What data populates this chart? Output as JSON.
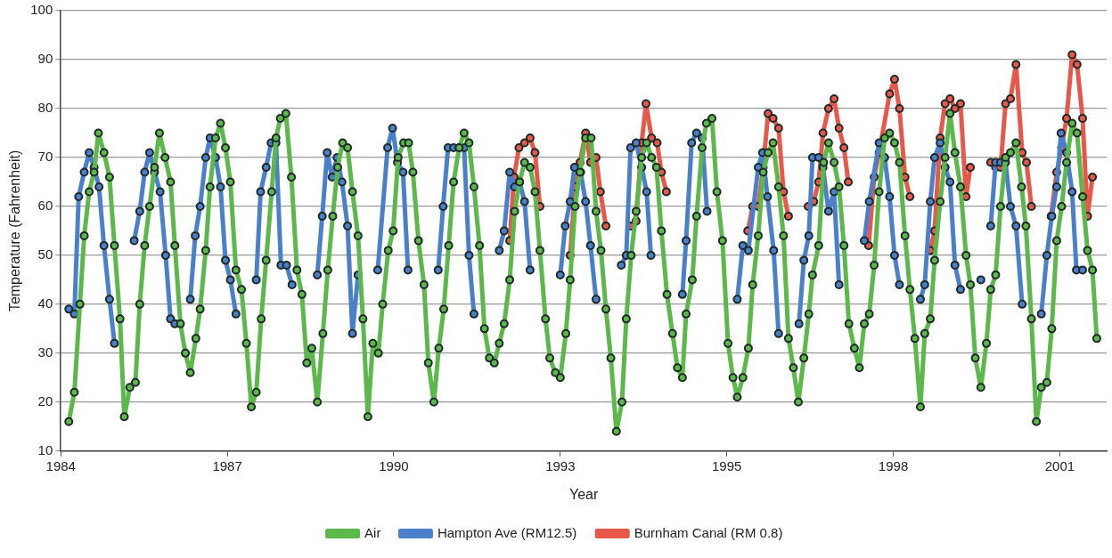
{
  "chart_data": {
    "type": "line",
    "xlabel": "Year",
    "ylabel": "Temperature (Fahrenheit)",
    "xlim": [
      1984.45,
      2001.41
    ],
    "ylim": [
      10,
      100
    ],
    "xticks": [
      {
        "value": 1984.45,
        "label": "1984"
      },
      {
        "value": 1987.15,
        "label": "1987"
      },
      {
        "value": 1989.85,
        "label": "1990"
      },
      {
        "value": 1992.55,
        "label": "1993"
      },
      {
        "value": 1995.25,
        "label": "1995"
      },
      {
        "value": 1997.95,
        "label": "1998"
      },
      {
        "value": 2000.65,
        "label": "2001"
      }
    ],
    "yticks": [
      10,
      20,
      30,
      40,
      50,
      60,
      70,
      80,
      90,
      100
    ],
    "grid": "y",
    "legend": "bottom",
    "marker": "circle",
    "series": [
      {
        "name": "Air",
        "color": "#5cb84a",
        "x": [
          1984.58,
          1984.67,
          1984.76,
          1984.83,
          1984.91,
          1984.99,
          1985.06,
          1985.15,
          1985.24,
          1985.32,
          1985.41,
          1985.48,
          1985.57,
          1985.66,
          1985.73,
          1985.81,
          1985.89,
          1985.97,
          1986.05,
          1986.14,
          1986.23,
          1986.3,
          1986.39,
          1986.47,
          1986.55,
          1986.64,
          1986.71,
          1986.8,
          1986.87,
          1986.96,
          1987.04,
          1987.12,
          1987.2,
          1987.29,
          1987.38,
          1987.46,
          1987.54,
          1987.62,
          1987.7,
          1987.78,
          1987.87,
          1987.94,
          1988.01,
          1988.1,
          1988.19,
          1988.28,
          1988.36,
          1988.44,
          1988.52,
          1988.61,
          1988.7,
          1988.78,
          1988.86,
          1988.94,
          1989.02,
          1989.1,
          1989.18,
          1989.27,
          1989.35,
          1989.43,
          1989.51,
          1989.6,
          1989.67,
          1989.76,
          1989.84,
          1989.92,
          1990.01,
          1990.09,
          1990.16,
          1990.25,
          1990.34,
          1990.41,
          1990.5,
          1990.58,
          1990.66,
          1990.74,
          1990.82,
          1990.91,
          1990.99,
          1991.07,
          1991.15,
          1991.24,
          1991.32,
          1991.4,
          1991.48,
          1991.56,
          1991.64,
          1991.73,
          1991.81,
          1991.89,
          1991.97,
          1992.06,
          1992.14,
          1992.22,
          1992.31,
          1992.38,
          1992.47,
          1992.55,
          1992.64,
          1992.71,
          1992.79,
          1992.87,
          1992.96,
          1993.05,
          1993.13,
          1993.21,
          1993.29,
          1993.37,
          1993.46,
          1993.55,
          1993.62,
          1993.7,
          1993.78,
          1993.87,
          1993.95,
          1994.03,
          1994.11,
          1994.19,
          1994.28,
          1994.37,
          1994.45,
          1994.53,
          1994.59,
          1994.69,
          1994.76,
          1994.85,
          1994.92,
          1995.01,
          1995.09,
          1995.18,
          1995.27,
          1995.35,
          1995.42,
          1995.51,
          1995.6,
          1995.67,
          1995.76,
          1995.84,
          1995.92,
          1996.0,
          1996.09,
          1996.17,
          1996.25,
          1996.33,
          1996.41,
          1996.5,
          1996.58,
          1996.64,
          1996.74,
          1996.82,
          1996.9,
          1996.99,
          1997.07,
          1997.15,
          1997.23,
          1997.32,
          1997.4,
          1997.48,
          1997.56,
          1997.64,
          1997.72,
          1997.81,
          1997.89,
          1997.97,
          1998.05,
          1998.14,
          1998.22,
          1998.3,
          1998.39,
          1998.46,
          1998.55,
          1998.62,
          1998.71,
          1998.79,
          1998.87,
          1998.95,
          1999.04,
          1999.13,
          1999.2,
          1999.28,
          1999.37,
          1999.46,
          1999.53,
          1999.61,
          1999.69,
          1999.77,
          1999.85,
          1999.94,
          2000.03,
          2000.1,
          2000.19,
          2000.27,
          2000.35,
          2000.44,
          2000.52,
          2000.6,
          2000.68,
          2000.76,
          2000.85,
          2000.93,
          2001.02,
          2001.1,
          2001.18,
          2001.25
        ],
        "values": [
          16,
          22,
          40,
          54,
          63,
          67,
          75,
          71,
          66,
          52,
          37,
          17,
          23,
          24,
          40,
          52,
          60,
          68,
          75,
          70,
          65,
          52,
          36,
          30,
          26,
          33,
          39,
          51,
          64,
          74,
          77,
          72,
          65,
          47,
          43,
          32,
          19,
          22,
          37,
          49,
          63,
          74,
          78,
          79,
          66,
          47,
          42,
          28,
          31,
          20,
          34,
          47,
          58,
          68,
          73,
          72,
          63,
          54,
          37,
          17,
          32,
          30,
          40,
          51,
          55,
          70,
          73,
          73,
          67,
          53,
          44,
          28,
          20,
          31,
          39,
          52,
          65,
          72,
          75,
          73,
          64,
          52,
          35,
          29,
          28,
          32,
          36,
          45,
          59,
          65,
          69,
          68,
          63,
          51,
          37,
          29,
          26,
          25,
          34,
          45,
          60,
          67,
          74,
          74,
          59,
          51,
          39,
          29,
          14,
          20,
          37,
          50,
          59,
          70,
          73,
          70,
          68,
          55,
          42,
          34,
          27,
          25,
          38,
          45,
          58,
          72,
          77,
          78,
          63,
          53,
          32,
          25,
          21,
          25,
          31,
          44,
          54,
          67,
          71,
          73,
          64,
          54,
          33,
          27,
          20,
          29,
          38,
          46,
          52,
          69,
          73,
          69,
          64,
          52,
          36,
          31,
          27,
          36,
          38,
          48,
          63,
          74,
          75,
          73,
          69,
          54,
          43,
          33,
          19,
          34,
          37,
          49,
          61,
          70,
          79,
          71,
          64,
          50,
          44,
          29,
          23,
          32,
          43,
          46,
          60,
          70,
          71,
          73,
          64,
          56,
          37,
          16,
          23,
          24,
          35,
          53,
          60,
          69,
          77,
          75,
          62,
          51,
          47,
          33
        ]
      },
      {
        "name": "Hampton Ave (RM12.5)",
        "color": "#4a7fcc",
        "x": [
          1984.58,
          1984.67,
          1984.74,
          1984.83,
          1984.91,
          1984.99,
          1985.07,
          1985.15,
          1985.24,
          1985.32,
          1985.48,
          1985.64,
          1985.73,
          1985.81,
          1985.89,
          1985.97,
          1986.06,
          1986.15,
          1986.23,
          1986.3,
          1986.42,
          1986.55,
          1986.63,
          1986.71,
          1986.8,
          1986.87,
          1986.96,
          1987.04,
          1987.12,
          1987.2,
          1987.29,
          1987.45,
          1987.62,
          1987.69,
          1987.78,
          1987.86,
          1987.94,
          1988.02,
          1988.11,
          1988.2,
          1988.4,
          1988.61,
          1988.69,
          1988.77,
          1988.85,
          1988.93,
          1989.01,
          1989.1,
          1989.18,
          1989.27,
          1989.43,
          1989.59,
          1989.75,
          1989.83,
          1989.91,
          1990.0,
          1990.08,
          1990.32,
          1990.57,
          1990.65,
          1990.73,
          1990.82,
          1990.91,
          1990.99,
          1991.07,
          1991.15,
          1991.35,
          1991.56,
          1991.64,
          1991.73,
          1991.81,
          1991.89,
          1991.97,
          1992.06,
          1992.3,
          1992.55,
          1992.63,
          1992.71,
          1992.78,
          1992.88,
          1992.96,
          1993.04,
          1993.13,
          1993.33,
          1993.54,
          1993.62,
          1993.69,
          1993.78,
          1993.87,
          1993.95,
          1994.02,
          1994.27,
          1994.53,
          1994.59,
          1994.68,
          1994.76,
          1994.85,
          1994.93,
          1995.17,
          1995.42,
          1995.51,
          1995.6,
          1995.76,
          1995.83,
          1995.91,
          1996.01,
          1996.09,
          1996.25,
          1996.42,
          1996.5,
          1996.58,
          1996.64,
          1996.74,
          1996.81,
          1996.9,
          1996.99,
          1997.07,
          1997.27,
          1997.48,
          1997.56,
          1997.72,
          1997.81,
          1997.89,
          1997.97,
          1998.05,
          1998.22,
          1998.39,
          1998.46,
          1998.55,
          1998.62,
          1998.71,
          1998.79,
          1998.87,
          1998.95,
          1999.04,
          1999.2,
          1999.37,
          1999.45,
          1999.53,
          1999.61,
          1999.69,
          1999.77,
          1999.85,
          1999.94,
          2000.04,
          2000.2,
          2000.35,
          2000.44,
          2000.52,
          2000.6,
          2000.67,
          2000.76,
          2000.85,
          2000.92,
          2001.02
        ],
        "values": [
          39,
          38,
          62,
          67,
          71,
          68,
          64,
          52,
          41,
          32,
          null,
          53,
          59,
          67,
          71,
          67,
          63,
          50,
          37,
          36,
          null,
          41,
          54,
          60,
          70,
          74,
          70,
          64,
          49,
          45,
          38,
          null,
          45,
          63,
          68,
          73,
          73,
          48,
          48,
          44,
          null,
          46,
          58,
          71,
          66,
          70,
          65,
          56,
          34,
          46,
          null,
          47,
          72,
          76,
          69,
          67,
          47,
          null,
          47,
          60,
          72,
          72,
          72,
          72,
          50,
          38,
          null,
          51,
          55,
          67,
          64,
          65,
          61,
          47,
          null,
          46,
          56,
          61,
          68,
          67,
          61,
          52,
          41,
          null,
          48,
          50,
          72,
          73,
          68,
          63,
          50,
          null,
          42,
          53,
          73,
          75,
          74,
          59,
          null,
          41,
          52,
          51,
          68,
          71,
          62,
          51,
          34,
          null,
          36,
          49,
          54,
          70,
          70,
          68,
          59,
          63,
          44,
          null,
          53,
          61,
          73,
          70,
          62,
          50,
          44,
          null,
          41,
          44,
          61,
          70,
          73,
          68,
          65,
          48,
          43,
          null,
          45,
          null,
          56,
          69,
          69,
          69,
          60,
          56,
          40,
          null,
          38,
          50,
          58,
          64,
          75,
          71,
          63,
          47,
          47
        ]
      },
      {
        "name": "Burnham Canal (RM 0.8)",
        "color": "#e8584a",
        "x": [
          1991.73,
          1991.8,
          1991.88,
          1991.97,
          1992.06,
          1992.14,
          1992.22,
          1992.46,
          1992.71,
          1992.79,
          1992.87,
          1992.96,
          1993.04,
          1993.13,
          1993.2,
          1993.29,
          1993.49,
          1993.69,
          1993.78,
          1993.87,
          1993.94,
          1994.03,
          1994.12,
          1994.19,
          1994.27,
          1994.9,
          1995.59,
          1995.67,
          1995.76,
          1995.84,
          1995.92,
          1996.0,
          1996.09,
          1996.17,
          1996.25,
          1996.41,
          1996.57,
          1996.66,
          1996.74,
          1996.81,
          1996.9,
          1996.99,
          1997.07,
          1997.15,
          1997.22,
          1997.38,
          1997.55,
          1997.64,
          1997.72,
          1997.89,
          1997.97,
          1998.05,
          1998.14,
          1998.22,
          1998.38,
          1998.55,
          1998.62,
          1998.71,
          1998.79,
          1998.87,
          1998.95,
          1999.04,
          1999.13,
          1999.2,
          1999.36,
          1999.53,
          1999.61,
          1999.69,
          1999.77,
          1999.85,
          1999.94,
          2000.04,
          2000.11,
          2000.19,
          2000.35,
          2000.51,
          2000.6,
          2000.68,
          2000.76,
          2000.85,
          2000.93,
          2001.02,
          2001.1,
          2001.18
        ],
        "values": [
          53,
          66,
          72,
          73,
          74,
          71,
          60,
          null,
          50,
          64,
          69,
          75,
          69,
          70,
          63,
          56,
          null,
          56,
          57,
          73,
          81,
          74,
          73,
          67,
          63,
          null,
          55,
          60,
          60,
          68,
          79,
          78,
          76,
          63,
          58,
          null,
          60,
          61,
          65,
          75,
          80,
          82,
          76,
          72,
          65,
          null,
          52,
          66,
          71,
          83,
          86,
          80,
          66,
          62,
          null,
          51,
          55,
          74,
          81,
          82,
          80,
          81,
          62,
          68,
          null,
          69,
          68,
          68,
          81,
          82,
          89,
          71,
          69,
          60,
          null,
          58,
          67,
          72,
          78,
          91,
          89,
          78,
          58,
          66
        ]
      }
    ]
  }
}
